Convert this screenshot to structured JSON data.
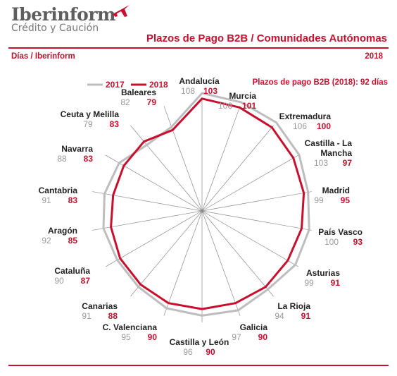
{
  "header": {
    "brand": "Iberinform",
    "brand_sub": "Crédito y Caución",
    "title": "Plazos de Pago B2B / Comunidades Autónomas",
    "subtitle_left": "Días / Iberinform",
    "subtitle_right": "2018"
  },
  "colors": {
    "accent": "#c8102e",
    "series_2017": "#bdbdbd",
    "series_2018": "#c8102e",
    "spokes": "#8a8a8a"
  },
  "chart_data": {
    "type": "radar",
    "title": "",
    "annotation": "Plazos de pago B2B (2018): 92 días",
    "range": [
      0,
      110
    ],
    "categories": [
      "Andalucía",
      "Murcia",
      "Extremadura",
      "Castilla - La Mancha",
      "Madrid",
      "País Vasco",
      "Asturias",
      "La Rioja",
      "Galicia",
      "Castilla y León",
      "C. Valenciana",
      "Canarias",
      "Cataluña",
      "Aragón",
      "Cantabria",
      "Navarra",
      "Ceuta y Melilla",
      "Baleares"
    ],
    "series": [
      {
        "name": "2017",
        "values": [
          108,
          106,
          106,
          103,
          99,
          100,
          99,
          94,
          97,
          96,
          95,
          91,
          90,
          92,
          91,
          88,
          79,
          82
        ]
      },
      {
        "name": "2018",
        "values": [
          103,
          101,
          100,
          97,
          95,
          93,
          91,
          91,
          90,
          90,
          90,
          88,
          87,
          85,
          83,
          83,
          83,
          79
        ]
      }
    ]
  }
}
